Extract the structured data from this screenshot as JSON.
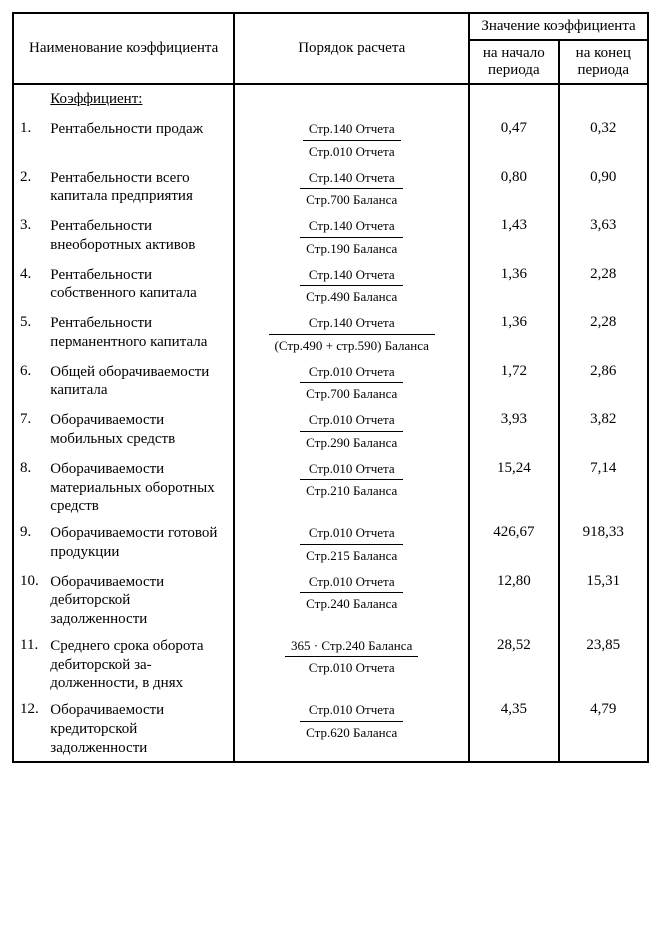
{
  "header": {
    "name": "Наименование коэффициента",
    "calc": "Порядок расчета",
    "value_group": "Значение коэффициента",
    "value_start": "на начало периода",
    "value_end": "на конец периода"
  },
  "section_title": "Коэффициент:",
  "rows": [
    {
      "num": "1.",
      "name": "Рентабельности продаж",
      "frac_num": "Стр.140   Отчета",
      "frac_den": "Стр.010   Отчета",
      "v1": "0,47",
      "v2": "0,32"
    },
    {
      "num": "2.",
      "name": "Рентабельности всего капитала предприятия",
      "frac_num": "Стр.140   Отчета",
      "frac_den": "Стр.700   Баланса",
      "v1": "0,80",
      "v2": "0,90"
    },
    {
      "num": "3.",
      "name": "Рентабельности внеоборотных активов",
      "frac_num": "Стр.140   Отчета",
      "frac_den": "Стр.190   Баланса",
      "v1": "1,43",
      "v2": "3,63"
    },
    {
      "num": "4.",
      "name": "Рентабельности собственного капитала",
      "frac_num": "Стр.140   Отчета",
      "frac_den": "Стр.490   Баланса",
      "v1": "1,36",
      "v2": "2,28"
    },
    {
      "num": "5.",
      "name": "Рентабельности перманентного капитала",
      "frac_num": "Стр.140   Отчета",
      "frac_den": "(Стр.490   +   стр.590)   Баланса",
      "v1": "1,36",
      "v2": "2,28"
    },
    {
      "num": "6.",
      "name": "Общей оборачиваемости капитала",
      "frac_num": "Стр.010   Отчета",
      "frac_den": "Стр.700   Баланса",
      "v1": "1,72",
      "v2": "2,86"
    },
    {
      "num": "7.",
      "name": "Оборачиваемости мобильных средств",
      "frac_num": "Стр.010   Отчета",
      "frac_den": "Стр.290   Баланса",
      "v1": "3,93",
      "v2": "3,82"
    },
    {
      "num": "8.",
      "name": "Оборачиваемости материальных оборотных средств",
      "frac_num": "Стр.010   Отчета",
      "frac_den": "Стр.210   Баланса",
      "v1": "15,24",
      "v2": "7,14"
    },
    {
      "num": "9.",
      "name": "Оборачиваемости готовой продукции",
      "frac_num": "Стр.010   Отчета",
      "frac_den": "Стр.215   Баланса",
      "v1": "426,67",
      "v2": "918,33"
    },
    {
      "num": "10.",
      "name": "Оборачиваемости дебиторской задолженности",
      "frac_num": "Стр.010   Отчета",
      "frac_den": "Стр.240   Баланса",
      "v1": "12,80",
      "v2": "15,31"
    },
    {
      "num": "11.",
      "name": "Среднего срока обо­рота дебиторской за­долженности, в днях",
      "frac_num": "365 · Стр.240   Баланса",
      "frac_den": "Стр.010   Отчета",
      "v1": "28,52",
      "v2": "23,85"
    },
    {
      "num": "12.",
      "name": "Оборачиваемости кредиторской задолженности",
      "frac_num": "Стр.010   Отчета",
      "frac_den": "Стр.620   Баланса",
      "v1": "4,35",
      "v2": "4,79"
    }
  ]
}
